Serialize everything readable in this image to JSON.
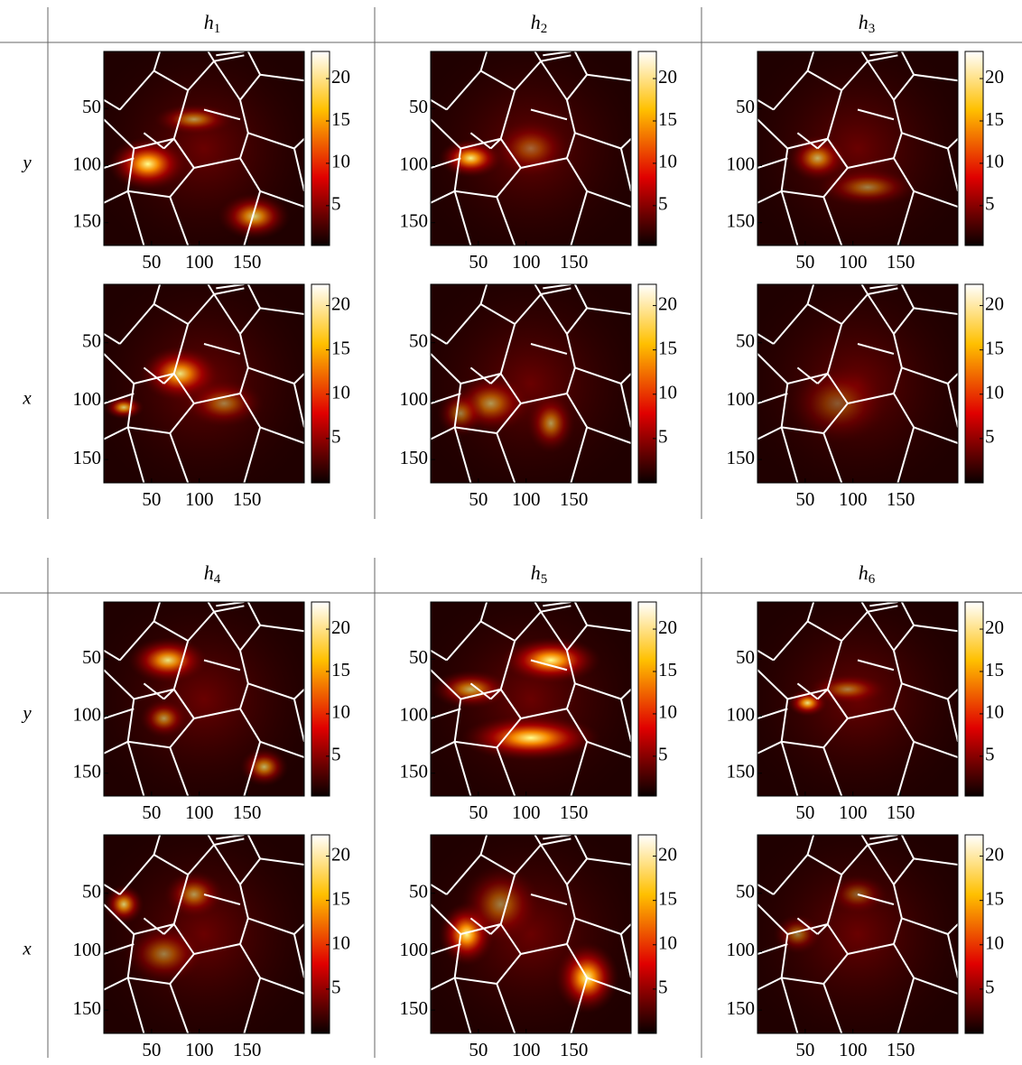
{
  "figure": {
    "blocks": [
      {
        "columns": [
          {
            "base": "h",
            "sub": "1"
          },
          {
            "base": "h",
            "sub": "2"
          },
          {
            "base": "h",
            "sub": "3"
          }
        ],
        "rows": [
          "y",
          "x"
        ]
      },
      {
        "columns": [
          {
            "base": "h",
            "sub": "4"
          },
          {
            "base": "h",
            "sub": "5"
          },
          {
            "base": "h",
            "sub": "6"
          }
        ],
        "rows": [
          "y",
          "x"
        ]
      }
    ]
  },
  "chart_data": [
    {
      "type": "heatmap",
      "xlim": [
        0,
        210
      ],
      "ylim": [
        0,
        170
      ],
      "xticks": [
        50,
        100,
        150
      ],
      "yticks": [
        50,
        100,
        150
      ],
      "clim": [
        0.3,
        23.2
      ],
      "cticks": [
        5,
        10,
        15,
        20
      ]
    },
    {
      "type": "heatmap",
      "xlim": [
        0,
        210
      ],
      "ylim": [
        0,
        170
      ],
      "xticks": [
        50,
        100,
        150
      ],
      "yticks": [
        50,
        100,
        150
      ],
      "clim": [
        0.3,
        23.2
      ],
      "cticks": [
        5,
        10,
        15,
        20
      ]
    },
    {
      "type": "heatmap",
      "xlim": [
        0,
        210
      ],
      "ylim": [
        0,
        170
      ],
      "xticks": [
        50,
        100,
        150
      ],
      "yticks": [
        50,
        100,
        150
      ],
      "clim": [
        0.3,
        23.2
      ],
      "cticks": [
        5,
        10,
        15,
        20
      ]
    },
    {
      "type": "heatmap",
      "xlim": [
        0,
        210
      ],
      "ylim": [
        0,
        170
      ],
      "xticks": [
        50,
        100,
        150
      ],
      "yticks": [
        50,
        100,
        150
      ],
      "clim": [
        0,
        22.4
      ],
      "cticks": [
        5,
        10,
        15,
        20
      ]
    },
    {
      "type": "heatmap",
      "xlim": [
        0,
        210
      ],
      "ylim": [
        0,
        170
      ],
      "xticks": [
        50,
        100,
        150
      ],
      "yticks": [
        50,
        100,
        150
      ],
      "clim": [
        0,
        22.4
      ],
      "cticks": [
        5,
        10,
        15,
        20
      ]
    },
    {
      "type": "heatmap",
      "xlim": [
        0,
        210
      ],
      "ylim": [
        0,
        170
      ],
      "xticks": [
        50,
        100,
        150
      ],
      "yticks": [
        50,
        100,
        150
      ],
      "clim": [
        0,
        22.4
      ],
      "cticks": [
        5,
        10,
        15,
        20
      ]
    },
    {
      "type": "heatmap",
      "xlim": [
        0,
        210
      ],
      "ylim": [
        0,
        170
      ],
      "xticks": [
        50,
        100,
        150
      ],
      "yticks": [
        50,
        100,
        150
      ],
      "clim": [
        0.3,
        23.2
      ],
      "cticks": [
        5,
        10,
        15,
        20
      ]
    },
    {
      "type": "heatmap",
      "xlim": [
        0,
        210
      ],
      "ylim": [
        0,
        170
      ],
      "xticks": [
        50,
        100,
        150
      ],
      "yticks": [
        50,
        100,
        150
      ],
      "clim": [
        0.3,
        23.2
      ],
      "cticks": [
        5,
        10,
        15,
        20
      ]
    },
    {
      "type": "heatmap",
      "xlim": [
        0,
        210
      ],
      "ylim": [
        0,
        170
      ],
      "xticks": [
        50,
        100,
        150
      ],
      "yticks": [
        50,
        100,
        150
      ],
      "clim": [
        0.3,
        23.2
      ],
      "cticks": [
        5,
        10,
        15,
        20
      ]
    },
    {
      "type": "heatmap",
      "xlim": [
        0,
        210
      ],
      "ylim": [
        0,
        170
      ],
      "xticks": [
        50,
        100,
        150
      ],
      "yticks": [
        50,
        100,
        150
      ],
      "clim": [
        0,
        22.4
      ],
      "cticks": [
        5,
        10,
        15,
        20
      ]
    },
    {
      "type": "heatmap",
      "xlim": [
        0,
        210
      ],
      "ylim": [
        0,
        170
      ],
      "xticks": [
        50,
        100,
        150
      ],
      "yticks": [
        50,
        100,
        150
      ],
      "clim": [
        0,
        22.4
      ],
      "cticks": [
        5,
        10,
        15,
        20
      ]
    },
    {
      "type": "heatmap",
      "xlim": [
        0,
        210
      ],
      "ylim": [
        0,
        170
      ],
      "xticks": [
        50,
        100,
        150
      ],
      "yticks": [
        50,
        100,
        150
      ],
      "clim": [
        0,
        22.4
      ],
      "cticks": [
        5,
        10,
        15,
        20
      ]
    }
  ]
}
